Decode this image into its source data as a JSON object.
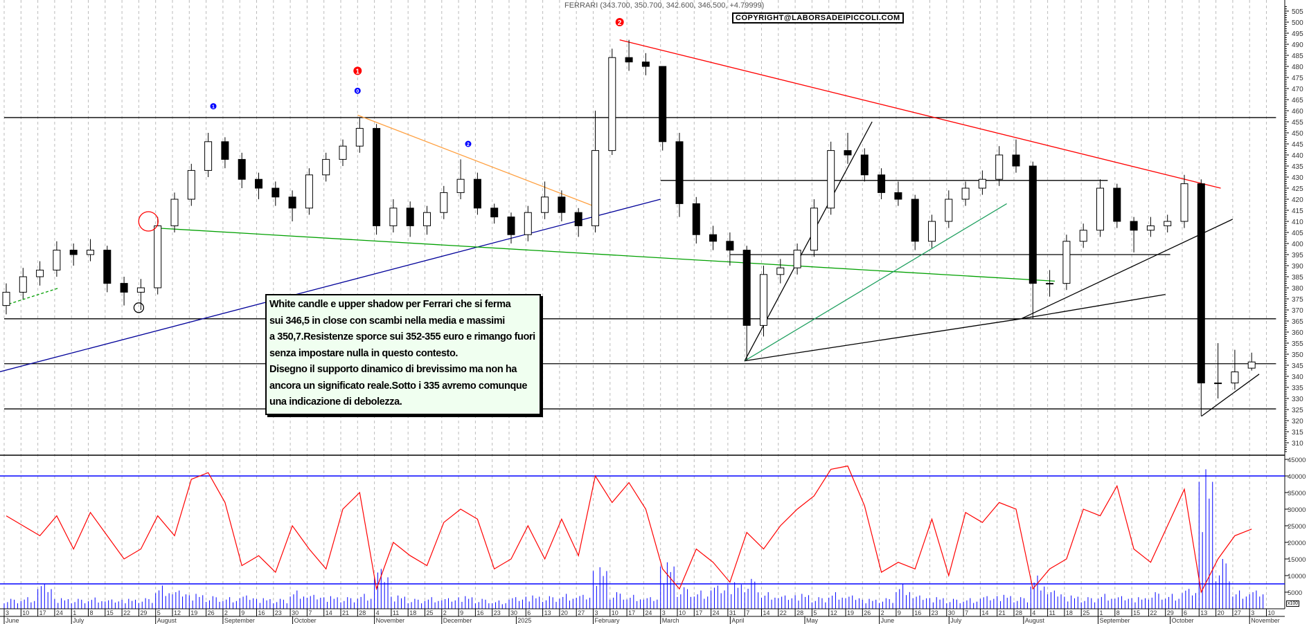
{
  "header": {
    "title": "FERRARI (343.700, 350.700, 342.600, 346.500, +4.79999)",
    "copyright": "COPYRIGHT@LABORSADEIPICCOLI.COM"
  },
  "note": {
    "lines": [
      "White candle e upper shadow per Ferrari che si ferma",
      "sui 346,5 in close con scambi nella media e massimi",
      "a 350,7.Resistenze sporce sui 352-355 euro e rimango fuori",
      "senza impostare nulla in questo contesto.",
      "Disegno il supporto dinamico di brevissimo ma non ha",
      "ancora un significato reale.Sotto i 335 avremo comunque",
      "una indicazione di debolezza."
    ]
  },
  "volume_unit": "x100",
  "colors": {
    "candle": "#000000",
    "volume_line": "#ff0000",
    "volume_bars": "#0000ff",
    "resistance": "#ff0000",
    "orange_line": "#ffa040",
    "blue_line": "#000099",
    "green_line": "#00a000",
    "grid": "#bbbbbb"
  },
  "chart_data": {
    "type": "candlestick",
    "title": "FERRARI (343.700, 350.700, 342.600, 346.500, +4.79999)",
    "price_axis": {
      "ylim": [
        305,
        508
      ],
      "ticks": [
        "505",
        "500",
        "495",
        "490",
        "485",
        "480",
        "475",
        "470",
        "465",
        "460",
        "455",
        "450",
        "445",
        "440",
        "435",
        "430",
        "425",
        "420",
        "415",
        "410",
        "405",
        "400",
        "395",
        "390",
        "385",
        "380",
        "375",
        "370",
        "365",
        "360",
        "355",
        "350",
        "345",
        "340",
        "335",
        "330",
        "325",
        "320",
        "315",
        "310"
      ]
    },
    "volume_axis": {
      "ylim": [
        0,
        46000
      ],
      "ticks": [
        "45000",
        "40000",
        "35000",
        "30000",
        "25000",
        "20000",
        "15000",
        "10000",
        "5000"
      ]
    },
    "x_start": "2024-06-03",
    "x_ticks": [
      "3",
      "10",
      "17",
      "24",
      "1",
      "8",
      "15",
      "22",
      "29",
      "5",
      "12",
      "19",
      "26",
      "2",
      "9",
      "16",
      "23",
      "30",
      "7",
      "14",
      "21",
      "28",
      "4",
      "11",
      "18",
      "25",
      "2",
      "9",
      "16",
      "23",
      "30",
      "6",
      "13",
      "20",
      "27",
      "3",
      "10",
      "17",
      "24",
      "3",
      "10",
      "17",
      "24",
      "31",
      "7",
      "14",
      "22",
      "28",
      "5",
      "12",
      "19",
      "26",
      "2",
      "9",
      "16",
      "23",
      "30",
      "7",
      "14",
      "21",
      "28",
      "4",
      "11",
      "18",
      "25",
      "1",
      "8",
      "15",
      "22",
      "29",
      "6",
      "13",
      "20",
      "27",
      "3",
      "10"
    ],
    "months": [
      {
        "label": "June",
        "date": "2024-06-03"
      },
      {
        "label": "July",
        "date": "2024-07-01"
      },
      {
        "label": "August",
        "date": "2024-08-05"
      },
      {
        "label": "September",
        "date": "2024-09-02"
      },
      {
        "label": "October",
        "date": "2024-10-01"
      },
      {
        "label": "November",
        "date": "2024-11-04"
      },
      {
        "label": "December",
        "date": "2024-12-02"
      },
      {
        "label": "2025",
        "date": "2025-01-02"
      },
      {
        "label": "February",
        "date": "2025-02-03"
      },
      {
        "label": "March",
        "date": "2025-03-03"
      },
      {
        "label": "April",
        "date": "2025-04-01"
      },
      {
        "label": "May",
        "date": "2025-05-02"
      },
      {
        "label": "June",
        "date": "2025-06-02"
      },
      {
        "label": "July",
        "date": "2025-07-01"
      },
      {
        "label": "August",
        "date": "2025-08-01"
      },
      {
        "label": "September",
        "date": "2025-09-01"
      },
      {
        "label": "October",
        "date": "2025-10-01"
      },
      {
        "label": "November",
        "date": "2025-11-03"
      }
    ],
    "candles_weekly_ohlc": [
      [
        372,
        382,
        368,
        378
      ],
      [
        378,
        389,
        375,
        385
      ],
      [
        385,
        392,
        381,
        388
      ],
      [
        388,
        401,
        385,
        397
      ],
      [
        397,
        400,
        390,
        395
      ],
      [
        395,
        402,
        392,
        397
      ],
      [
        397,
        399,
        378,
        382
      ],
      [
        382,
        385,
        372,
        378
      ],
      [
        378,
        384,
        370,
        380
      ],
      [
        380,
        412,
        377,
        408
      ],
      [
        408,
        423,
        405,
        420
      ],
      [
        420,
        436,
        417,
        433
      ],
      [
        433,
        450,
        430,
        446
      ],
      [
        446,
        448,
        434,
        438
      ],
      [
        438,
        441,
        425,
        429
      ],
      [
        429,
        432,
        420,
        425
      ],
      [
        425,
        428,
        417,
        421
      ],
      [
        421,
        424,
        410,
        416
      ],
      [
        416,
        434,
        413,
        431
      ],
      [
        431,
        441,
        428,
        438
      ],
      [
        438,
        447,
        435,
        444
      ],
      [
        444,
        457,
        441,
        452
      ],
      [
        452,
        454,
        404,
        408
      ],
      [
        408,
        420,
        405,
        416
      ],
      [
        416,
        419,
        403,
        408
      ],
      [
        408,
        417,
        404,
        414
      ],
      [
        414,
        426,
        411,
        423
      ],
      [
        423,
        438,
        420,
        429
      ],
      [
        429,
        432,
        413,
        416
      ],
      [
        416,
        418,
        409,
        412
      ],
      [
        412,
        414,
        400,
        404
      ],
      [
        404,
        417,
        401,
        414
      ],
      [
        414,
        428,
        411,
        421
      ],
      [
        421,
        424,
        410,
        414
      ],
      [
        414,
        416,
        403,
        408
      ],
      [
        408,
        460,
        405,
        442
      ],
      [
        442,
        488,
        440,
        484
      ],
      [
        484,
        492,
        478,
        482
      ],
      [
        482,
        486,
        476,
        480
      ],
      [
        480,
        458,
        442,
        446
      ],
      [
        446,
        450,
        412,
        418
      ],
      [
        418,
        421,
        400,
        404
      ],
      [
        404,
        408,
        397,
        401
      ],
      [
        401,
        405,
        390,
        397
      ],
      [
        397,
        399,
        347,
        363
      ],
      [
        363,
        390,
        358,
        386
      ],
      [
        386,
        393,
        382,
        389
      ],
      [
        389,
        400,
        386,
        397
      ],
      [
        397,
        420,
        394,
        416
      ],
      [
        416,
        446,
        413,
        442
      ],
      [
        442,
        450,
        436,
        440
      ],
      [
        440,
        443,
        428,
        431
      ],
      [
        431,
        434,
        420,
        423
      ],
      [
        423,
        428,
        417,
        420
      ],
      [
        420,
        422,
        397,
        401
      ],
      [
        401,
        413,
        398,
        410
      ],
      [
        410,
        424,
        407,
        420
      ],
      [
        420,
        428,
        417,
        425
      ],
      [
        425,
        433,
        422,
        429
      ],
      [
        429,
        444,
        426,
        440
      ],
      [
        440,
        447,
        432,
        435
      ],
      [
        435,
        437,
        366,
        382
      ],
      [
        382,
        388,
        376,
        382
      ],
      [
        382,
        404,
        379,
        401
      ],
      [
        401,
        409,
        398,
        406
      ],
      [
        406,
        429,
        403,
        425
      ],
      [
        425,
        427,
        407,
        410
      ],
      [
        410,
        412,
        396,
        406
      ],
      [
        406,
        412,
        403,
        408
      ],
      [
        408,
        413,
        405,
        410
      ],
      [
        410,
        431,
        407,
        427
      ],
      [
        427,
        429,
        322,
        337
      ],
      [
        337,
        355,
        330,
        337
      ],
      [
        337,
        352,
        334,
        342
      ],
      [
        343.7,
        350.7,
        342.6,
        346.5
      ]
    ],
    "volume_bars_weekly": [
      3000,
      3500,
      7500,
      3200,
      3000,
      3400,
      2800,
      3000,
      3200,
      7000,
      5500,
      4500,
      3800,
      3500,
      4000,
      3200,
      3000,
      5500,
      4200,
      3800,
      3500,
      4500,
      12000,
      4000,
      3000,
      3500,
      3200,
      3800,
      3000,
      2500,
      3500,
      4000,
      3800,
      4500,
      4200,
      12500,
      5000,
      4200,
      3500,
      14000,
      6500,
      5500,
      7000,
      8000,
      9000,
      5000,
      4000,
      4500,
      3500,
      5000,
      4000,
      3000,
      3200,
      7500,
      4000,
      3500,
      3000,
      3200,
      3800,
      4200,
      3500,
      10000,
      5500,
      4000,
      3500,
      4500,
      3800,
      3500,
      5000,
      4500,
      6000,
      42000,
      15000,
      5500,
      5500
    ],
    "volume_line_weekly": [
      28000,
      25000,
      22000,
      28000,
      18000,
      29000,
      22000,
      15000,
      18000,
      28000,
      22000,
      39000,
      41000,
      32000,
      13000,
      16000,
      11000,
      25000,
      18000,
      12000,
      30000,
      35000,
      6000,
      20000,
      16000,
      13000,
      26000,
      30000,
      27000,
      12000,
      15000,
      25000,
      15000,
      27000,
      16000,
      40000,
      32000,
      38000,
      30000,
      12000,
      6000,
      18000,
      14000,
      8000,
      23000,
      18000,
      25000,
      30000,
      34000,
      42000,
      43000,
      31000,
      11000,
      14000,
      12000,
      27000,
      10000,
      29000,
      26000,
      32000,
      30000,
      6000,
      12000,
      15000,
      30000,
      28000,
      37000,
      18000,
      14000,
      25000,
      36000,
      5000,
      15000,
      22000,
      24000
    ],
    "volume_hlines": [
      40000,
      7500
    ],
    "price_hlines": [
      {
        "price": 456.9,
        "from": "2024-06-03",
        "to": "2025-11-14"
      },
      {
        "price": 428.5,
        "from": "2025-03-03",
        "to": "2025-09-05"
      },
      {
        "price": 395,
        "from": "2025-04-01",
        "to": "2025-10-01"
      },
      {
        "price": 366,
        "from": "2024-06-03",
        "to": "2025-11-14"
      },
      {
        "price": 345.7,
        "from": "2024-06-03",
        "to": "2025-11-14"
      },
      {
        "price": 325.3,
        "from": "2024-06-03",
        "to": "2025-11-14"
      }
    ],
    "trendlines": [
      {
        "color": "#ff0000",
        "from": [
          "2025-02-14",
          492
        ],
        "to": [
          "2025-10-22",
          425
        ]
      },
      {
        "color": "#ffa040",
        "from": [
          "2024-10-28",
          458
        ],
        "to": [
          "2025-02-03",
          417
        ]
      },
      {
        "color": "#000099",
        "from": [
          "2024-06-01",
          342
        ],
        "to": [
          "2025-03-03",
          420
        ]
      },
      {
        "color": "#00a000",
        "from": [
          "2024-08-05",
          407
        ],
        "to": [
          "2025-08-14",
          383
        ]
      },
      {
        "color": "#00a000",
        "from": [
          "2024-06-03",
          372
        ],
        "to": [
          "2024-06-26",
          380
        ],
        "dashed": true
      },
      {
        "color": "#000000",
        "from": [
          "2025-04-07",
          347
        ],
        "to": [
          "2025-05-30",
          455
        ]
      },
      {
        "color": "#20a060",
        "from": [
          "2025-04-07",
          347
        ],
        "to": [
          "2025-07-25",
          418
        ]
      },
      {
        "color": "#000000",
        "from": [
          "2025-04-07",
          347
        ],
        "to": [
          "2025-07-31",
          366
        ]
      },
      {
        "color": "#000000",
        "from": [
          "2025-07-31",
          366
        ],
        "to": [
          "2025-10-27",
          411
        ]
      },
      {
        "color": "#000000",
        "from": [
          "2025-07-31",
          366
        ],
        "to": [
          "2025-09-29",
          377
        ]
      },
      {
        "color": "#000000",
        "from": [
          "2025-10-14",
          322
        ],
        "to": [
          "2025-11-07",
          341
        ]
      }
    ],
    "markers": [
      {
        "label": "1",
        "color": "#0000ff",
        "date": "2024-08-29",
        "price": 462
      },
      {
        "label": "0",
        "color": "#0000ff",
        "date": "2024-10-28",
        "price": 469
      },
      {
        "label": "1",
        "color": "#ff0000",
        "date": "2024-10-28",
        "price": 478
      },
      {
        "label": "2",
        "color": "#0000ff",
        "date": "2024-12-13",
        "price": 445
      },
      {
        "label": "2",
        "color": "#ff0000",
        "date": "2025-02-14",
        "price": 500
      }
    ],
    "circles": [
      {
        "color": "#ff0000",
        "date": "2024-08-02",
        "price": 410
      },
      {
        "color": "#000000",
        "date": "2024-07-29",
        "price": 371
      }
    ]
  }
}
